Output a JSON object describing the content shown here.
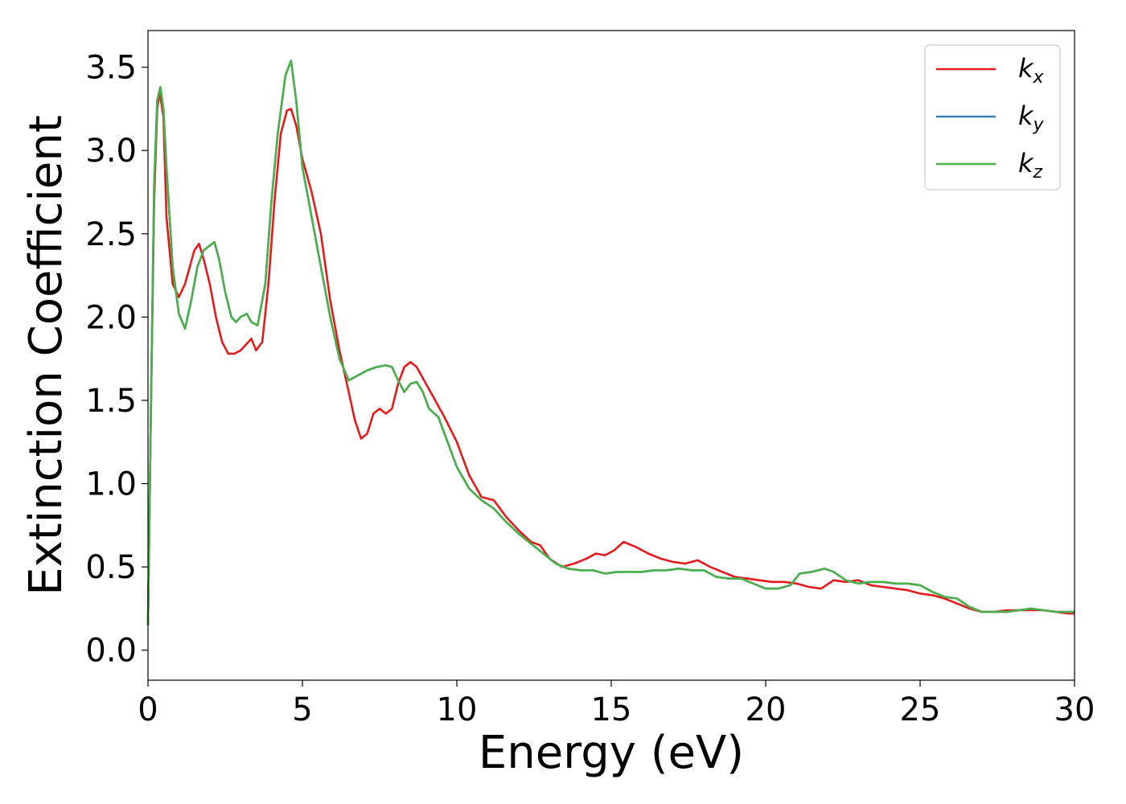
{
  "chart_data": {
    "type": "line",
    "xlabel": "Energy (eV)",
    "ylabel": "Extinction Coefficient",
    "xlim": [
      0,
      30
    ],
    "ylim": [
      -0.18,
      3.72
    ],
    "xticks": [
      0,
      5,
      10,
      15,
      20,
      25,
      30
    ],
    "xtick_labels": [
      "0",
      "5",
      "10",
      "15",
      "20",
      "25",
      "30"
    ],
    "yticks": [
      0.0,
      0.5,
      1.0,
      1.5,
      2.0,
      2.5,
      3.0,
      3.5
    ],
    "ytick_labels": [
      "0.0",
      "0.5",
      "1.0",
      "1.5",
      "2.0",
      "2.5",
      "3.0",
      "3.5"
    ],
    "grid": false,
    "legend_position": "top-right",
    "series": [
      {
        "name_base": "k",
        "name_sub": "x",
        "color": "#e41a1c",
        "x": [
          0,
          0.1,
          0.2,
          0.3,
          0.38,
          0.5,
          0.6,
          0.8,
          1.0,
          1.2,
          1.5,
          1.65,
          1.8,
          2.0,
          2.2,
          2.4,
          2.6,
          2.8,
          3.0,
          3.2,
          3.35,
          3.5,
          3.7,
          3.9,
          4.1,
          4.3,
          4.5,
          4.63,
          4.8,
          5.0,
          5.3,
          5.6,
          5.9,
          6.2,
          6.5,
          6.7,
          6.9,
          7.1,
          7.3,
          7.5,
          7.7,
          7.9,
          8.1,
          8.3,
          8.5,
          8.7,
          9.0,
          9.3,
          9.6,
          10.0,
          10.4,
          10.8,
          11.2,
          11.6,
          12.0,
          12.4,
          12.7,
          13.0,
          13.4,
          13.8,
          14.2,
          14.5,
          14.8,
          15.1,
          15.4,
          15.8,
          16.2,
          16.6,
          17.0,
          17.4,
          17.8,
          18.2,
          18.6,
          19.0,
          19.4,
          19.8,
          20.2,
          20.6,
          21.0,
          21.4,
          21.8,
          22.2,
          22.6,
          23.0,
          23.4,
          23.8,
          24.2,
          24.6,
          25.0,
          25.4,
          25.8,
          26.2,
          26.6,
          27.0,
          27.4,
          27.8,
          28.2,
          28.6,
          29.0,
          29.4,
          29.8,
          30.0
        ],
        "y": [
          0.15,
          1.5,
          2.7,
          3.25,
          3.35,
          3.2,
          2.6,
          2.2,
          2.12,
          2.2,
          2.4,
          2.44,
          2.35,
          2.2,
          2.0,
          1.85,
          1.78,
          1.78,
          1.8,
          1.84,
          1.87,
          1.8,
          1.85,
          2.2,
          2.7,
          3.1,
          3.24,
          3.25,
          3.15,
          2.95,
          2.75,
          2.5,
          2.1,
          1.8,
          1.55,
          1.38,
          1.27,
          1.3,
          1.42,
          1.45,
          1.42,
          1.45,
          1.6,
          1.7,
          1.73,
          1.7,
          1.6,
          1.5,
          1.4,
          1.25,
          1.05,
          0.92,
          0.9,
          0.8,
          0.72,
          0.65,
          0.63,
          0.55,
          0.5,
          0.52,
          0.55,
          0.58,
          0.57,
          0.6,
          0.65,
          0.62,
          0.58,
          0.55,
          0.53,
          0.52,
          0.54,
          0.5,
          0.47,
          0.44,
          0.43,
          0.42,
          0.41,
          0.41,
          0.4,
          0.38,
          0.37,
          0.42,
          0.41,
          0.42,
          0.39,
          0.38,
          0.37,
          0.36,
          0.34,
          0.33,
          0.31,
          0.28,
          0.25,
          0.23,
          0.23,
          0.24,
          0.24,
          0.24,
          0.24,
          0.23,
          0.22,
          0.22
        ]
      },
      {
        "name_base": "k",
        "name_sub": "y",
        "color": "#377eb8",
        "x": [
          0,
          0.1,
          0.2,
          0.3,
          0.4,
          0.5,
          0.6,
          0.8,
          1.0,
          1.2,
          1.4,
          1.6,
          1.8,
          2.0,
          2.15,
          2.3,
          2.5,
          2.7,
          2.85,
          3.0,
          3.2,
          3.35,
          3.55,
          3.8,
          4.0,
          4.2,
          4.45,
          4.63,
          4.8,
          5.0,
          5.3,
          5.6,
          5.9,
          6.2,
          6.5,
          6.8,
          7.1,
          7.4,
          7.7,
          7.9,
          8.1,
          8.3,
          8.5,
          8.7,
          8.9,
          9.1,
          9.4,
          9.7,
          10.0,
          10.4,
          10.8,
          11.2,
          11.6,
          12.0,
          12.4,
          12.8,
          13.2,
          13.6,
          14.0,
          14.4,
          14.8,
          15.2,
          15.6,
          16.0,
          16.4,
          16.8,
          17.2,
          17.6,
          18.0,
          18.4,
          18.8,
          19.2,
          19.6,
          20.0,
          20.4,
          20.8,
          21.1,
          21.5,
          21.9,
          22.2,
          22.6,
          23.0,
          23.4,
          23.8,
          24.2,
          24.6,
          25.0,
          25.4,
          25.8,
          26.2,
          26.6,
          27.0,
          27.4,
          27.8,
          28.2,
          28.6,
          29.0,
          29.4,
          29.8,
          30.0
        ],
        "y": [
          0.15,
          1.5,
          2.8,
          3.3,
          3.38,
          3.25,
          2.9,
          2.3,
          2.02,
          1.93,
          2.1,
          2.3,
          2.4,
          2.43,
          2.45,
          2.35,
          2.15,
          2.0,
          1.97,
          2.0,
          2.02,
          1.97,
          1.95,
          2.2,
          2.7,
          3.1,
          3.45,
          3.54,
          3.3,
          2.9,
          2.6,
          2.3,
          2.0,
          1.75,
          1.62,
          1.65,
          1.68,
          1.7,
          1.71,
          1.7,
          1.62,
          1.55,
          1.6,
          1.61,
          1.55,
          1.45,
          1.4,
          1.25,
          1.1,
          0.97,
          0.9,
          0.85,
          0.77,
          0.7,
          0.64,
          0.58,
          0.52,
          0.49,
          0.48,
          0.48,
          0.46,
          0.47,
          0.47,
          0.47,
          0.48,
          0.48,
          0.49,
          0.48,
          0.48,
          0.44,
          0.43,
          0.43,
          0.4,
          0.37,
          0.37,
          0.39,
          0.46,
          0.47,
          0.49,
          0.47,
          0.42,
          0.4,
          0.41,
          0.41,
          0.4,
          0.4,
          0.39,
          0.35,
          0.32,
          0.31,
          0.26,
          0.23,
          0.23,
          0.23,
          0.24,
          0.25,
          0.24,
          0.23,
          0.23,
          0.23
        ]
      },
      {
        "name_base": "k",
        "name_sub": "z",
        "color": "#4daf4a",
        "x": [
          0,
          0.1,
          0.2,
          0.3,
          0.4,
          0.5,
          0.6,
          0.8,
          1.0,
          1.2,
          1.4,
          1.6,
          1.8,
          2.0,
          2.15,
          2.3,
          2.5,
          2.7,
          2.85,
          3.0,
          3.2,
          3.35,
          3.55,
          3.8,
          4.0,
          4.2,
          4.45,
          4.63,
          4.8,
          5.0,
          5.3,
          5.6,
          5.9,
          6.2,
          6.5,
          6.8,
          7.1,
          7.4,
          7.7,
          7.9,
          8.1,
          8.3,
          8.5,
          8.7,
          8.9,
          9.1,
          9.4,
          9.7,
          10.0,
          10.4,
          10.8,
          11.2,
          11.6,
          12.0,
          12.4,
          12.8,
          13.2,
          13.6,
          14.0,
          14.4,
          14.8,
          15.2,
          15.6,
          16.0,
          16.4,
          16.8,
          17.2,
          17.6,
          18.0,
          18.4,
          18.8,
          19.2,
          19.6,
          20.0,
          20.4,
          20.8,
          21.1,
          21.5,
          21.9,
          22.2,
          22.6,
          23.0,
          23.4,
          23.8,
          24.2,
          24.6,
          25.0,
          25.4,
          25.8,
          26.2,
          26.6,
          27.0,
          27.4,
          27.8,
          28.2,
          28.6,
          29.0,
          29.4,
          29.8,
          30.0
        ],
        "y": [
          0.15,
          1.5,
          2.8,
          3.3,
          3.38,
          3.25,
          2.9,
          2.3,
          2.02,
          1.93,
          2.1,
          2.3,
          2.4,
          2.43,
          2.45,
          2.35,
          2.15,
          2.0,
          1.97,
          2.0,
          2.02,
          1.97,
          1.95,
          2.2,
          2.7,
          3.1,
          3.45,
          3.54,
          3.3,
          2.9,
          2.6,
          2.3,
          2.0,
          1.75,
          1.62,
          1.65,
          1.68,
          1.7,
          1.71,
          1.7,
          1.62,
          1.55,
          1.6,
          1.61,
          1.55,
          1.45,
          1.4,
          1.25,
          1.1,
          0.97,
          0.9,
          0.85,
          0.77,
          0.7,
          0.64,
          0.58,
          0.52,
          0.49,
          0.48,
          0.48,
          0.46,
          0.47,
          0.47,
          0.47,
          0.48,
          0.48,
          0.49,
          0.48,
          0.48,
          0.44,
          0.43,
          0.43,
          0.4,
          0.37,
          0.37,
          0.39,
          0.46,
          0.47,
          0.49,
          0.47,
          0.42,
          0.4,
          0.41,
          0.41,
          0.4,
          0.4,
          0.39,
          0.35,
          0.32,
          0.31,
          0.26,
          0.23,
          0.23,
          0.23,
          0.24,
          0.25,
          0.24,
          0.23,
          0.23,
          0.23
        ]
      }
    ]
  }
}
